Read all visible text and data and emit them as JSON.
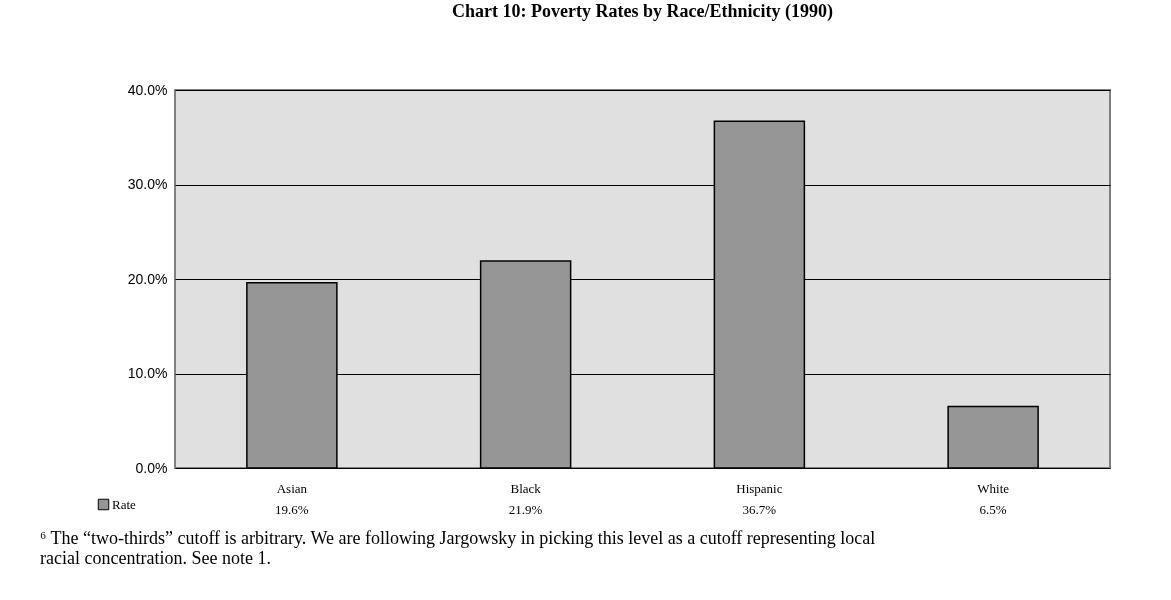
{
  "chart_data": {
    "type": "bar",
    "title": "Chart 10: Poverty Rates by Race/Ethnicity (1990)",
    "categories": [
      "Asian",
      "Black",
      "Hispanic",
      "White"
    ],
    "series": [
      {
        "name": "Rate",
        "color": "#969696",
        "values": [
          19.6,
          21.9,
          36.7,
          6.5
        ],
        "value_labels": [
          "19.6%",
          "21.9%",
          "36.7%",
          "6.5%"
        ]
      }
    ],
    "ylim": [
      0,
      40
    ],
    "yticks": [
      {
        "value": 0,
        "label": "0.0%"
      },
      {
        "value": 10,
        "label": "10.0%"
      },
      {
        "value": 20,
        "label": "20.0%"
      },
      {
        "value": 30,
        "label": "30.0%"
      },
      {
        "value": 40,
        "label": "40.0%"
      }
    ],
    "grid": "y",
    "legend": "bottom left",
    "annotations": [
      "⁶ The “two-thirds” cutoff is arbitrary.  We are following Jargowsky in picking this level as a cutoff representing local racial concentration.  See note 1."
    ]
  }
}
